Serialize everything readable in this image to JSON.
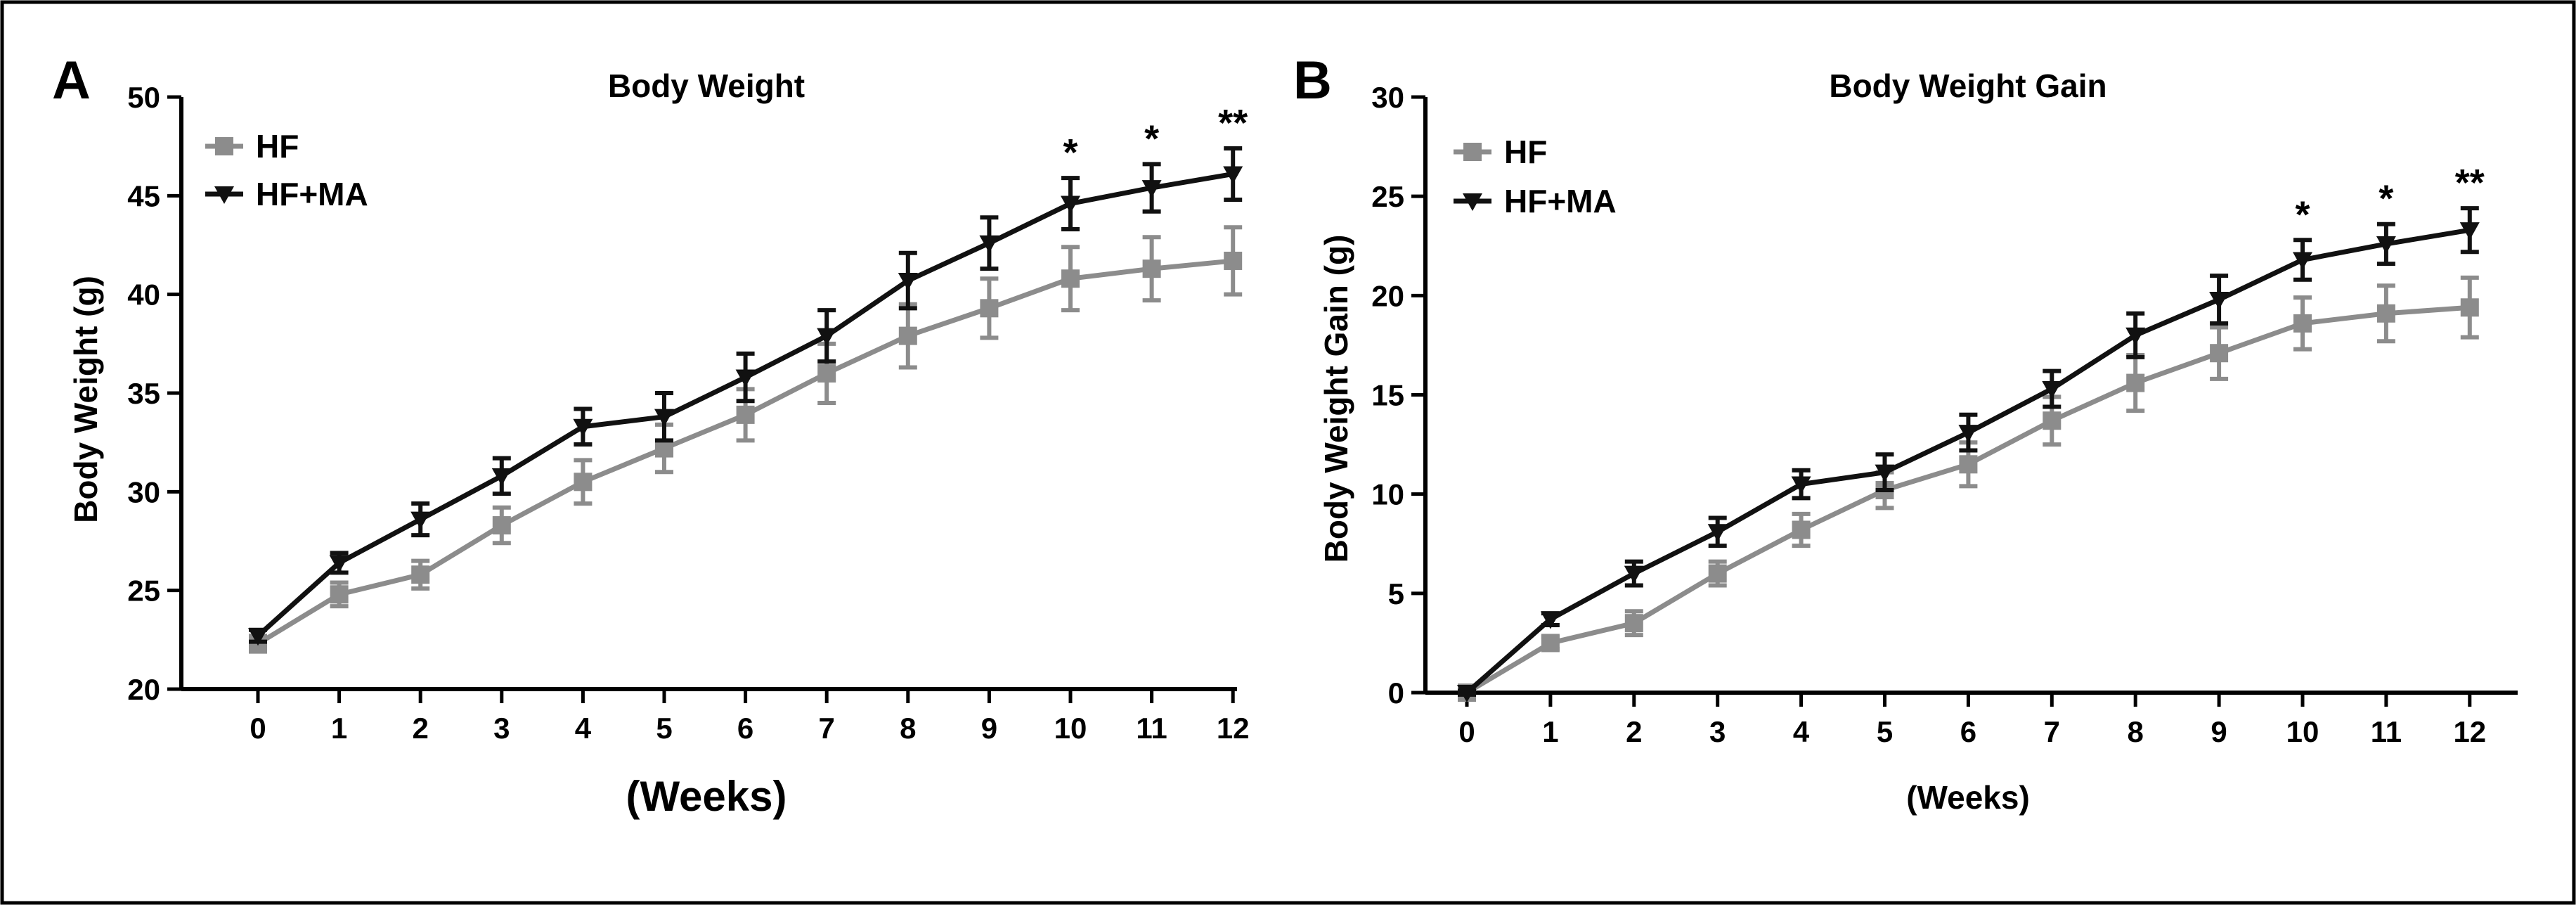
{
  "colors": {
    "HF": "#8c8c8c",
    "HF+MA": "#111111",
    "frame": "#000000"
  },
  "chart_data": [
    {
      "type": "line",
      "panel_label": "A",
      "title": "Body Weight",
      "xlabel": "(Weeks)",
      "ylabel": "Body Weight (g)",
      "x": [
        0,
        1,
        2,
        3,
        4,
        5,
        6,
        7,
        8,
        9,
        10,
        11,
        12
      ],
      "x_tick_labels": [
        "0",
        "1",
        "2",
        "3",
        "4",
        "5",
        "6",
        "7",
        "8",
        "9",
        "10",
        "11",
        "12"
      ],
      "ylim": [
        20,
        50
      ],
      "y_ticks": [
        20,
        25,
        30,
        35,
        40,
        45,
        50
      ],
      "y_tick_labels": [
        "20",
        "25",
        "30",
        "35",
        "40",
        "45",
        "50"
      ],
      "legend_position": "top-left",
      "series": [
        {
          "name": "HF",
          "color": "#8c8c8c",
          "marker": "square",
          "values": [
            22.3,
            24.8,
            25.8,
            28.3,
            30.5,
            32.2,
            33.9,
            36.0,
            37.9,
            39.3,
            40.8,
            41.3,
            41.7
          ],
          "errors": [
            0.4,
            0.6,
            0.7,
            0.9,
            1.1,
            1.2,
            1.3,
            1.5,
            1.6,
            1.5,
            1.6,
            1.6,
            1.7
          ]
        },
        {
          "name": "HF+MA",
          "color": "#111111",
          "marker": "triangle-down",
          "values": [
            22.7,
            26.4,
            28.6,
            30.8,
            33.3,
            33.8,
            35.8,
            37.9,
            40.7,
            42.6,
            44.6,
            45.4,
            46.1
          ],
          "errors": [
            0.3,
            0.5,
            0.8,
            0.9,
            0.9,
            1.2,
            1.2,
            1.3,
            1.4,
            1.3,
            1.3,
            1.2,
            1.3
          ]
        }
      ],
      "annotations": [
        {
          "x": 10,
          "text": "*"
        },
        {
          "x": 11,
          "text": "*"
        },
        {
          "x": 12,
          "text": "**"
        }
      ]
    },
    {
      "type": "line",
      "panel_label": "B",
      "title": "Body Weight Gain",
      "xlabel": "(Weeks)",
      "ylabel": "Body Weight Gain (g)",
      "x": [
        0,
        1,
        2,
        3,
        4,
        5,
        6,
        7,
        8,
        9,
        10,
        11,
        12
      ],
      "x_tick_labels": [
        "0",
        "1",
        "2",
        "3",
        "4",
        "5",
        "6",
        "7",
        "8",
        "9",
        "10",
        "11",
        "12"
      ],
      "ylim": [
        0,
        30
      ],
      "y_ticks": [
        0,
        5,
        10,
        15,
        20,
        25,
        30
      ],
      "y_tick_labels": [
        "0",
        "5",
        "10",
        "15",
        "20",
        "25",
        "30"
      ],
      "legend_position": "top-left",
      "series": [
        {
          "name": "HF",
          "color": "#8c8c8c",
          "marker": "square",
          "values": [
            0.0,
            2.5,
            3.5,
            6.0,
            8.2,
            10.2,
            11.5,
            13.7,
            15.6,
            17.1,
            18.6,
            19.1,
            19.4
          ],
          "errors": [
            0.1,
            0.3,
            0.6,
            0.6,
            0.8,
            0.9,
            1.1,
            1.2,
            1.4,
            1.3,
            1.3,
            1.4,
            1.5
          ]
        },
        {
          "name": "HF+MA",
          "color": "#111111",
          "marker": "triangle-down",
          "values": [
            0.0,
            3.7,
            6.0,
            8.1,
            10.5,
            11.1,
            13.1,
            15.3,
            18.0,
            19.8,
            21.8,
            22.6,
            23.3
          ],
          "errors": [
            0.1,
            0.3,
            0.6,
            0.7,
            0.7,
            0.9,
            0.9,
            0.9,
            1.1,
            1.2,
            1.0,
            1.0,
            1.1
          ]
        }
      ],
      "annotations": [
        {
          "x": 10,
          "text": "*"
        },
        {
          "x": 11,
          "text": "*"
        },
        {
          "x": 12,
          "text": "**"
        }
      ]
    }
  ]
}
